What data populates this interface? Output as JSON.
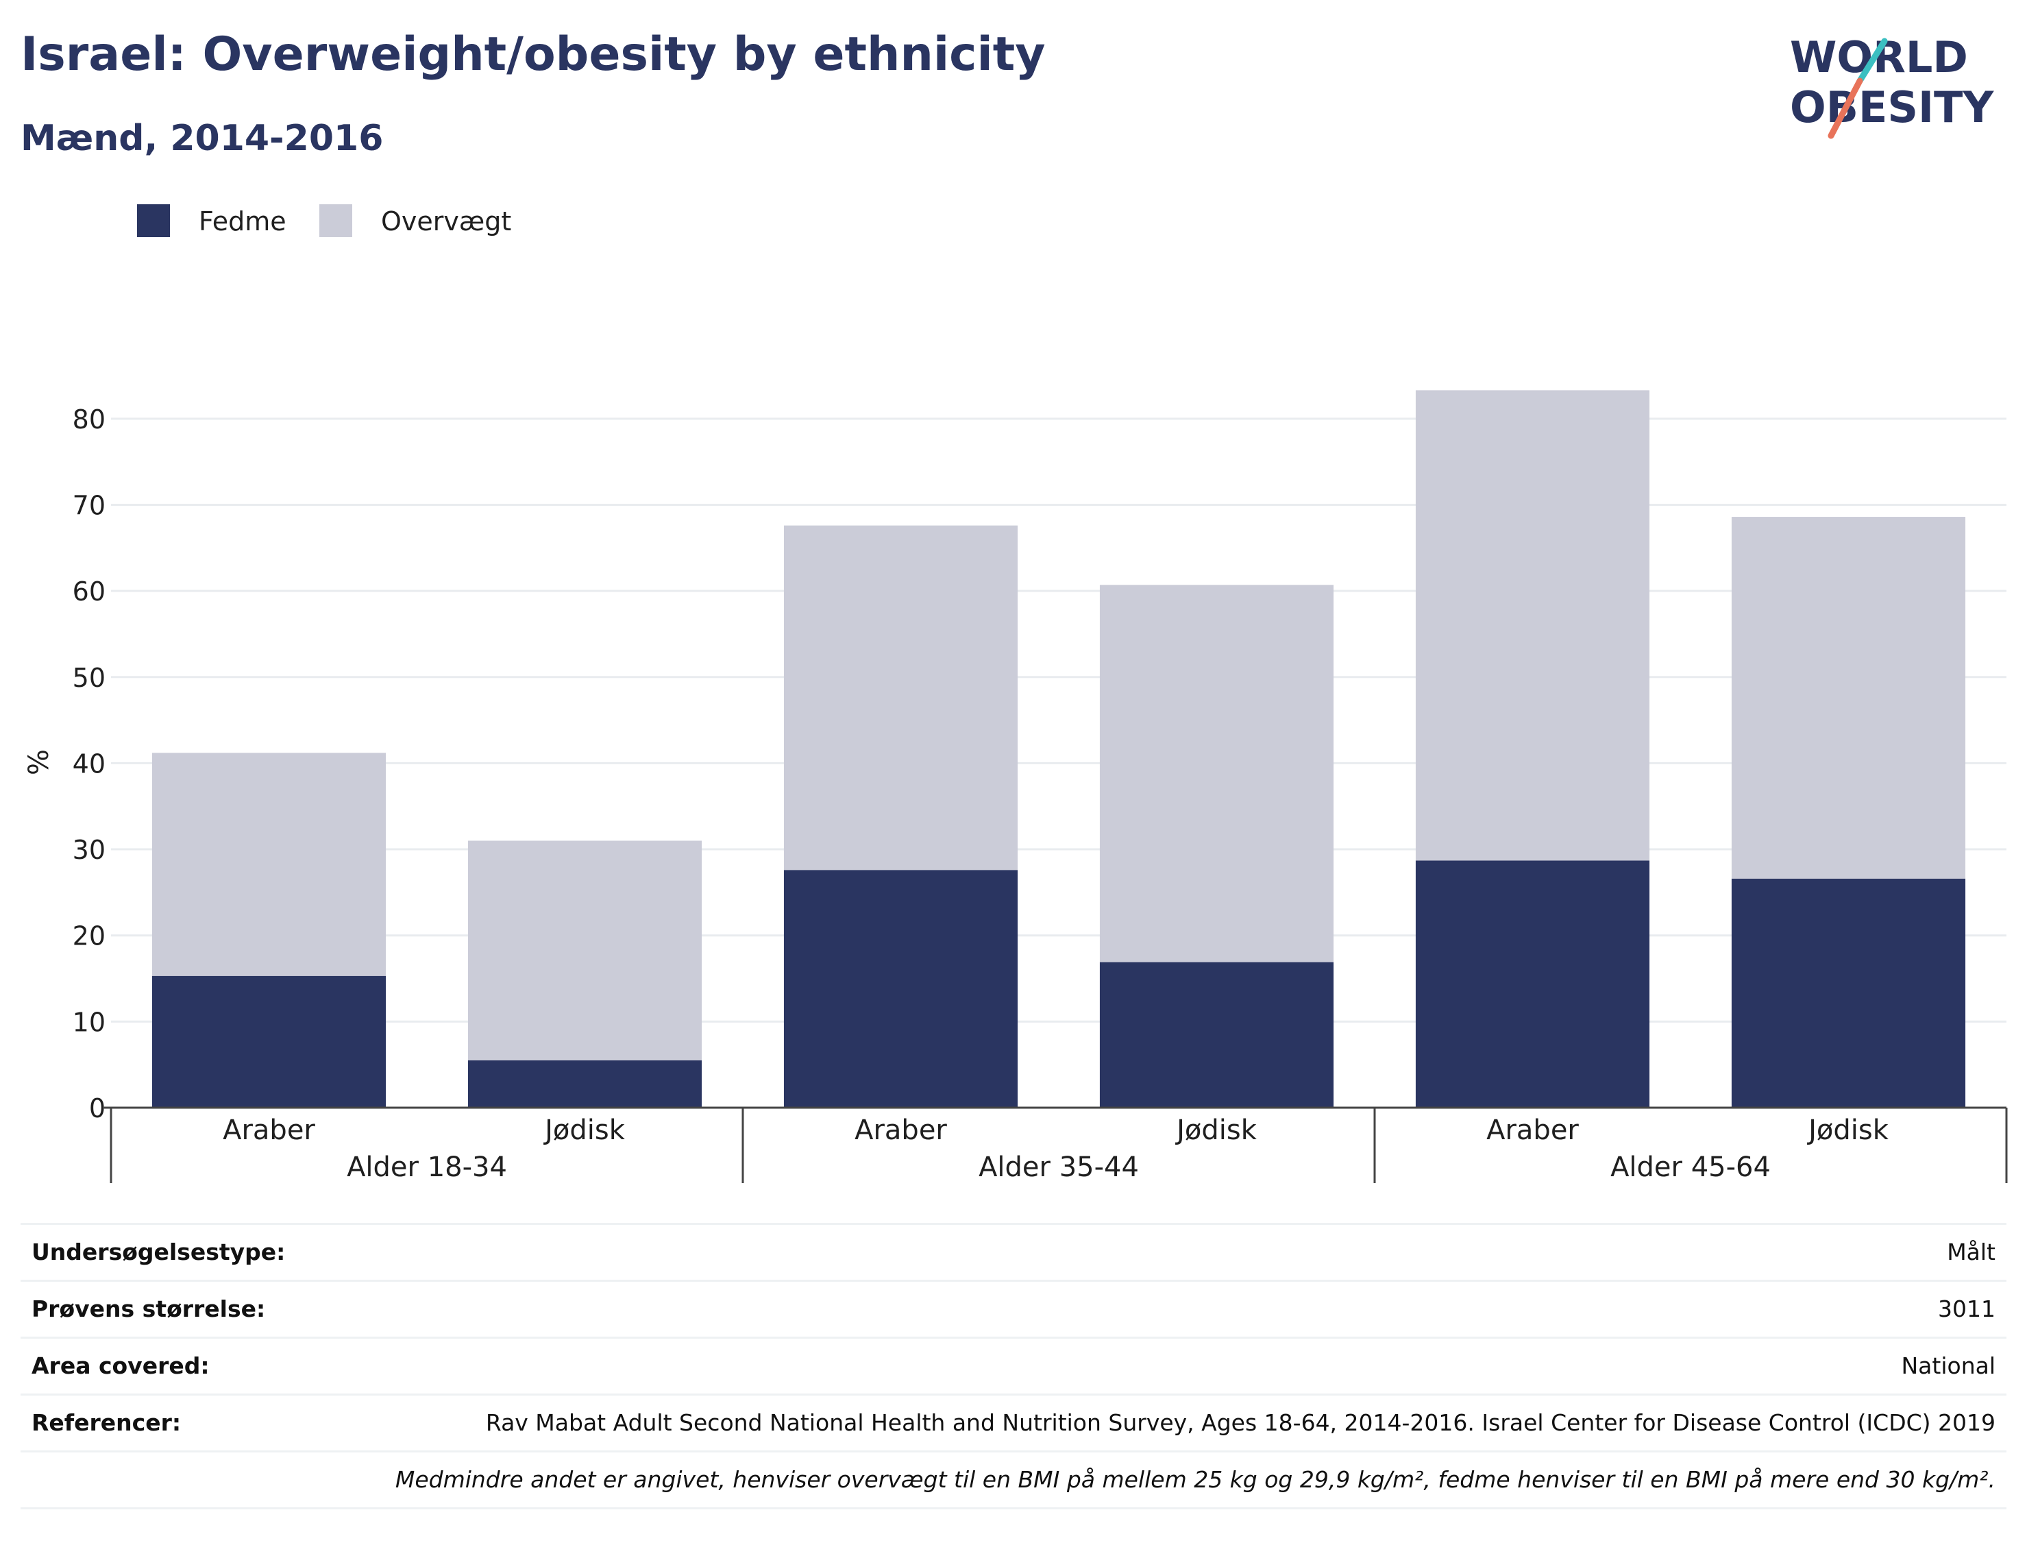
{
  "header": {
    "title": "Israel: Overweight/obesity by ethnicity",
    "subtitle": "Mænd, 2014-2016"
  },
  "logo": {
    "line1": "WORLD",
    "line2": "OBESITY"
  },
  "colors": {
    "obesity": "#2a3561",
    "overweight": "#cbccd8",
    "title": "#2a3561",
    "gridline": "#e9ecef",
    "logo_accent_teal": "#3bbfc1",
    "logo_accent_coral": "#e8735a"
  },
  "chart_data": {
    "type": "bar",
    "stacked": true,
    "ylabel": "%",
    "xlabel": "",
    "ylim": [
      0,
      85
    ],
    "yticks": [
      0,
      10,
      20,
      30,
      40,
      50,
      60,
      70,
      80
    ],
    "grid": true,
    "legend_position": "top-left",
    "groups": [
      {
        "label": "Alder 18-34",
        "categories": [
          "Araber",
          "Jødisk"
        ]
      },
      {
        "label": "Alder 35-44",
        "categories": [
          "Araber",
          "Jødisk"
        ]
      },
      {
        "label": "Alder 45-64",
        "categories": [
          "Araber",
          "Jødisk"
        ]
      }
    ],
    "categories": [
      "Araber",
      "Jødisk",
      "Araber",
      "Jødisk",
      "Araber",
      "Jødisk"
    ],
    "series": [
      {
        "name": "Fedme",
        "values": [
          15.3,
          5.5,
          27.6,
          16.9,
          28.7,
          26.6
        ]
      },
      {
        "name": "Overvægt",
        "values": [
          25.9,
          25.5,
          40.0,
          43.8,
          54.6,
          42.0
        ]
      }
    ]
  },
  "info_table": [
    {
      "label": "Undersøgelsestype:",
      "value": "Målt"
    },
    {
      "label": "Prøvens størrelse:",
      "value": "3011"
    },
    {
      "label": "Area covered:",
      "value": "National"
    },
    {
      "label": "Referencer:",
      "value": "Rav Mabat Adult Second National Health and Nutrition Survey, Ages 18-64, 2014-2016. Israel Center for Disease Control (ICDC) 2019"
    }
  ],
  "footnote": "Medmindre andet er angivet, henviser overvægt til en BMI på mellem 25 kg og 29,9 kg/m², fedme henviser til en BMI på mere end 30 kg/m²."
}
